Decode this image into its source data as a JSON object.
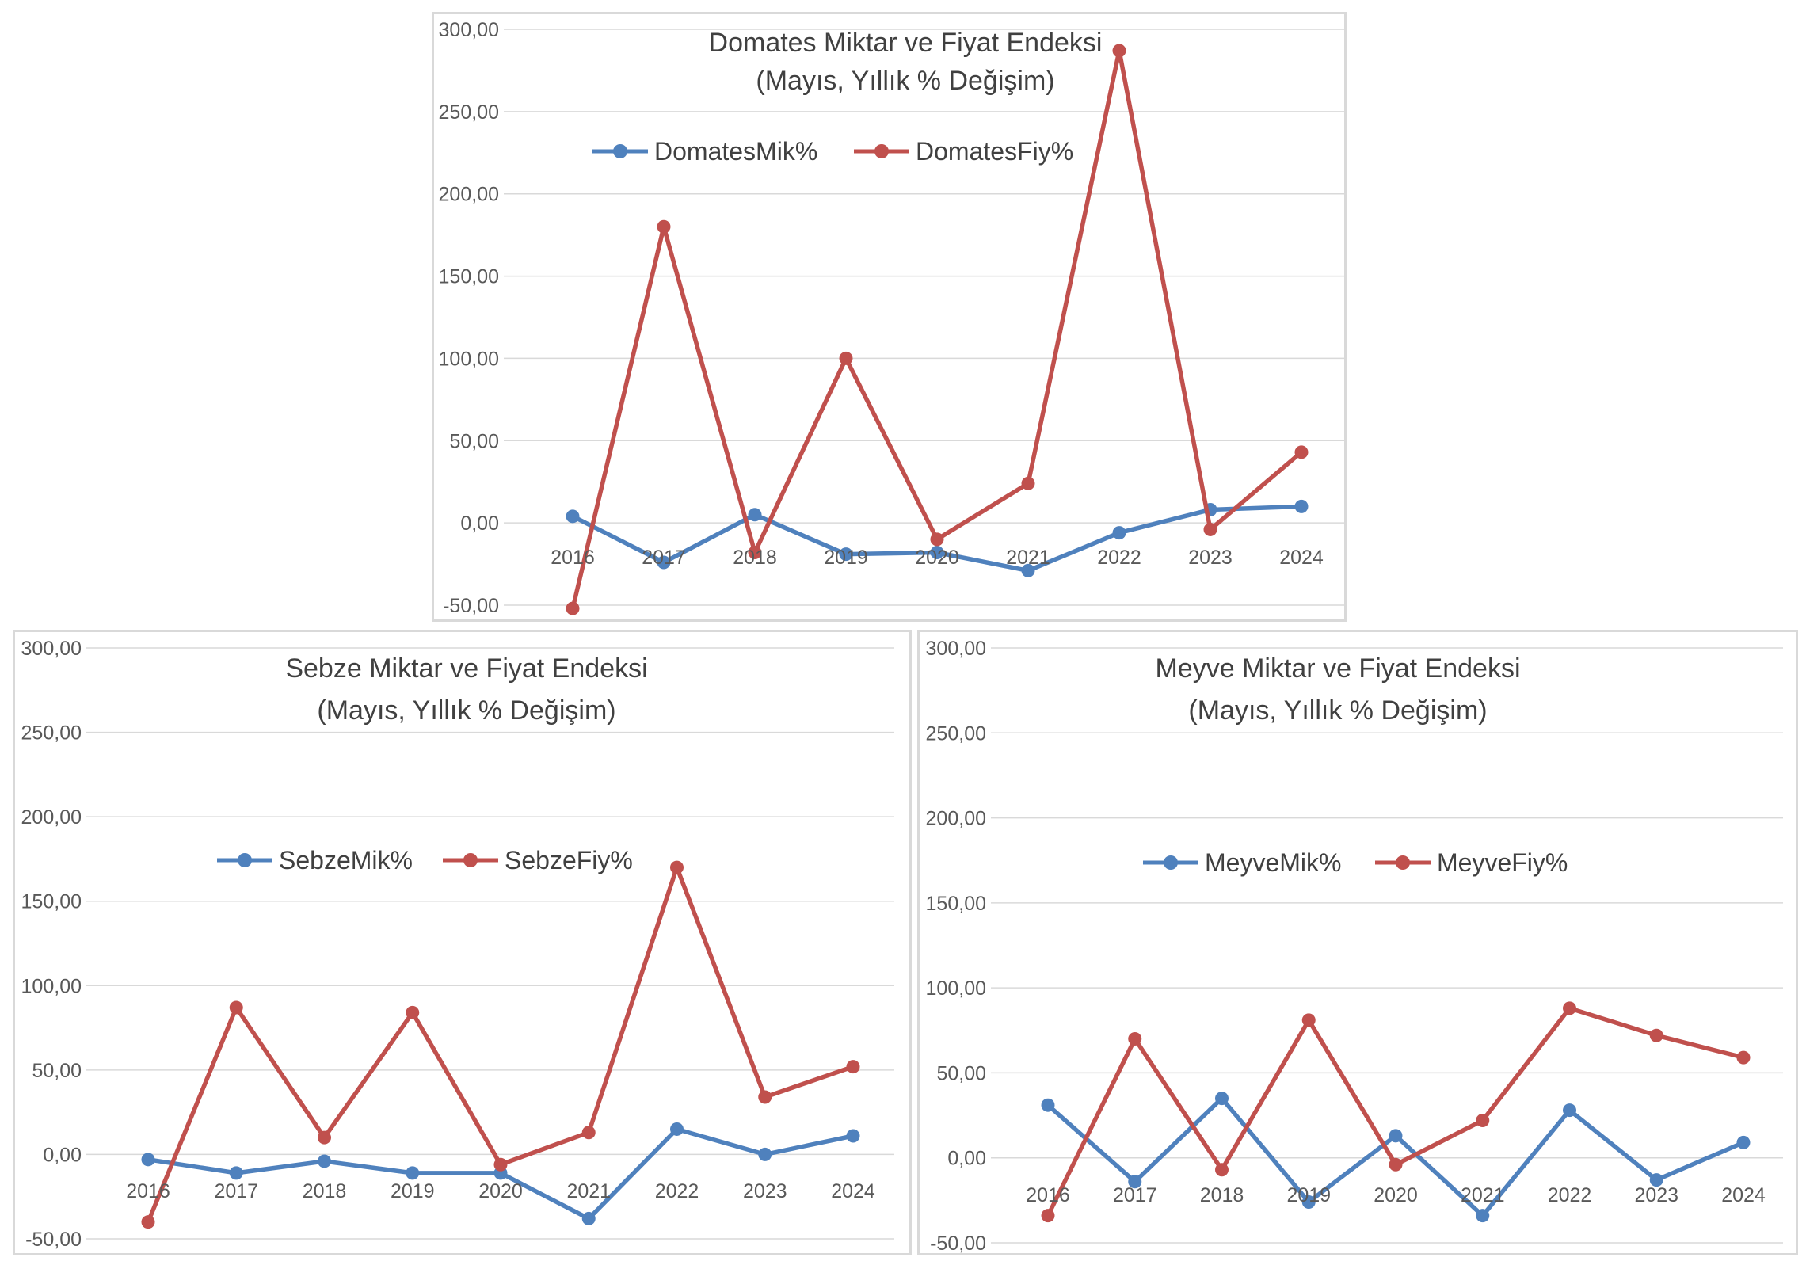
{
  "chart_data": [
    {
      "type": "line",
      "title": "Domates Miktar ve Fiyat Endeksi",
      "subtitle": "(Mayıs, Yıllık % Değişim)",
      "x": [
        "2016",
        "2017",
        "2018",
        "2019",
        "2020",
        "2021",
        "2022",
        "2023",
        "2024"
      ],
      "ylim": [
        -50,
        300
      ],
      "yticks": [
        "300,00",
        "250,00",
        "200,00",
        "150,00",
        "100,00",
        "50,00",
        "0,00",
        "-50,00"
      ],
      "grid": true,
      "legend_position": "top",
      "series": [
        {
          "name": "DomatesMik%",
          "color": "#4f81bd",
          "values": [
            4,
            -24,
            5,
            -19,
            -18,
            -29,
            -6,
            8,
            10
          ]
        },
        {
          "name": "DomatesFiy%",
          "color": "#c0504d",
          "values": [
            -52,
            180,
            -18,
            100,
            -10,
            24,
            287,
            -4,
            43
          ]
        }
      ]
    },
    {
      "type": "line",
      "title": "Sebze Miktar ve Fiyat Endeksi",
      "subtitle": "(Mayıs, Yıllık % Değişim)",
      "x": [
        "2016",
        "2017",
        "2018",
        "2019",
        "2020",
        "2021",
        "2022",
        "2023",
        "2024"
      ],
      "ylim": [
        -50,
        300
      ],
      "yticks": [
        "300,00",
        "250,00",
        "200,00",
        "150,00",
        "100,00",
        "50,00",
        "0,00",
        "-50,00"
      ],
      "grid": true,
      "legend_position": "top",
      "series": [
        {
          "name": "SebzeMik%",
          "color": "#4f81bd",
          "values": [
            -3,
            -11,
            -4,
            -11,
            -11,
            -38,
            15,
            0,
            11
          ]
        },
        {
          "name": "SebzeFiy%",
          "color": "#c0504d",
          "values": [
            -40,
            87,
            10,
            84,
            -6,
            13,
            170,
            34,
            52
          ]
        }
      ]
    },
    {
      "type": "line",
      "title": "Meyve Miktar ve Fiyat Endeksi",
      "subtitle": "(Mayıs, Yıllık % Değişim)",
      "x": [
        "2016",
        "2017",
        "2018",
        "2019",
        "2020",
        "2021",
        "2022",
        "2023",
        "2024"
      ],
      "ylim": [
        -50,
        300
      ],
      "yticks": [
        "300,00",
        "250,00",
        "200,00",
        "150,00",
        "100,00",
        "50,00",
        "0,00",
        "-50,00"
      ],
      "grid": true,
      "legend_position": "top",
      "series": [
        {
          "name": "MeyveMik%",
          "color": "#4f81bd",
          "values": [
            31,
            -14,
            35,
            -26,
            13,
            -34,
            28,
            -13,
            9
          ]
        },
        {
          "name": "MeyveFiy%",
          "color": "#c0504d",
          "values": [
            -34,
            70,
            -7,
            81,
            -4,
            22,
            88,
            72,
            59
          ]
        }
      ]
    }
  ]
}
